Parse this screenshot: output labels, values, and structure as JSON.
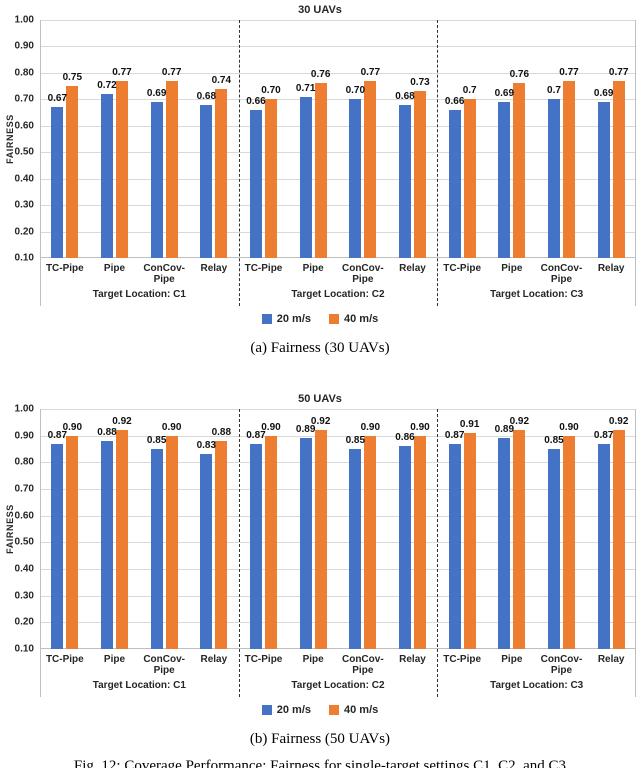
{
  "figure": {
    "caption_a": "(a) Fairness (30 UAVs)",
    "caption_b": "(b) Fairness (50 UAVs)",
    "fig_caption": "Fig. 12: Coverage Performance: Fairness for single-target settings C1, C2, and C3"
  },
  "colors": {
    "series_20ms": "#4472C4",
    "series_40ms": "#ED7D31",
    "gridline": "#D9D9D9",
    "axis_border": "#BFBFBF",
    "group_separator": "#333333"
  },
  "chart_data": [
    {
      "type": "bar",
      "title": "30 UAVs",
      "ylabel": "FAIRNESS",
      "ylim": [
        0.1,
        1.0
      ],
      "ytick_step": 0.1,
      "yticks": [
        "1.00",
        "0.90",
        "0.80",
        "0.70",
        "0.60",
        "0.50",
        "0.40",
        "0.30",
        "0.20",
        "0.10"
      ],
      "grid": true,
      "legend_position": "bottom",
      "legend": [
        {
          "label": "20 m/s",
          "color": "#4472C4"
        },
        {
          "label": "40 m/s",
          "color": "#ED7D31"
        }
      ],
      "groups": [
        {
          "label": "Target Location: C1",
          "categories": [
            "TC-Pipe",
            "Pipe",
            "ConCov-Pipe",
            "Relay"
          ],
          "series": [
            {
              "name": "20 m/s",
              "color": "#4472C4",
              "values": [
                0.67,
                0.72,
                0.69,
                0.68
              ],
              "labels": [
                "0.67",
                "0.72",
                "0.69",
                "0.68"
              ]
            },
            {
              "name": "40 m/s",
              "color": "#ED7D31",
              "values": [
                0.75,
                0.77,
                0.77,
                0.74
              ],
              "labels": [
                "0.75",
                "0.77",
                "0.77",
                "0.74"
              ]
            }
          ]
        },
        {
          "label": "Target Location: C2",
          "categories": [
            "TC-Pipe",
            "Pipe",
            "ConCov-Pipe",
            "Relay"
          ],
          "series": [
            {
              "name": "20 m/s",
              "color": "#4472C4",
              "values": [
                0.66,
                0.71,
                0.7,
                0.68
              ],
              "labels": [
                "0.66",
                "0.71",
                "0.70",
                "0.68"
              ]
            },
            {
              "name": "40 m/s",
              "color": "#ED7D31",
              "values": [
                0.7,
                0.76,
                0.77,
                0.73
              ],
              "labels": [
                "0.70",
                "0.76",
                "0.77",
                "0.73"
              ]
            }
          ]
        },
        {
          "label": "Target Location: C3",
          "categories": [
            "TC-Pipe",
            "Pipe",
            "ConCov-Pipe",
            "Relay"
          ],
          "series": [
            {
              "name": "20 m/s",
              "color": "#4472C4",
              "values": [
                0.66,
                0.69,
                0.7,
                0.69
              ],
              "labels": [
                "0.66",
                "0.69",
                "0.7",
                "0.69"
              ]
            },
            {
              "name": "40 m/s",
              "color": "#ED7D31",
              "values": [
                0.7,
                0.76,
                0.77,
                0.77
              ],
              "labels": [
                "0.7",
                "0.76",
                "0.77",
                "0.77"
              ]
            }
          ]
        }
      ]
    },
    {
      "type": "bar",
      "title": "50 UAVs",
      "ylabel": "FAIRNESS",
      "ylim": [
        0.1,
        1.0
      ],
      "ytick_step": 0.1,
      "yticks": [
        "1.00",
        "0.90",
        "0.80",
        "0.70",
        "0.60",
        "0.50",
        "0.40",
        "0.30",
        "0.20",
        "0.10"
      ],
      "grid": true,
      "legend_position": "bottom",
      "legend": [
        {
          "label": "20 m/s",
          "color": "#4472C4"
        },
        {
          "label": "40 m/s",
          "color": "#ED7D31"
        }
      ],
      "groups": [
        {
          "label": "Target Location: C1",
          "categories": [
            "TC-Pipe",
            "Pipe",
            "ConCov-Pipe",
            "Relay"
          ],
          "series": [
            {
              "name": "20 m/s",
              "color": "#4472C4",
              "values": [
                0.87,
                0.88,
                0.85,
                0.83
              ],
              "labels": [
                "0.87",
                "0.88",
                "0.85",
                "0.83"
              ]
            },
            {
              "name": "40 m/s",
              "color": "#ED7D31",
              "values": [
                0.9,
                0.92,
                0.9,
                0.88
              ],
              "labels": [
                "0.90",
                "0.92",
                "0.90",
                "0.88"
              ]
            }
          ]
        },
        {
          "label": "Target Location: C2",
          "categories": [
            "TC-Pipe",
            "Pipe",
            "ConCov-Pipe",
            "Relay"
          ],
          "series": [
            {
              "name": "20 m/s",
              "color": "#4472C4",
              "values": [
                0.87,
                0.89,
                0.85,
                0.86
              ],
              "labels": [
                "0.87",
                "0.89",
                "0.85",
                "0.86"
              ]
            },
            {
              "name": "40 m/s",
              "color": "#ED7D31",
              "values": [
                0.9,
                0.92,
                0.9,
                0.9
              ],
              "labels": [
                "0.90",
                "0.92",
                "0.90",
                "0.90"
              ]
            }
          ]
        },
        {
          "label": "Target Location: C3",
          "categories": [
            "TC-Pipe",
            "Pipe",
            "ConCov-Pipe",
            "Relay"
          ],
          "series": [
            {
              "name": "20 m/s",
              "color": "#4472C4",
              "values": [
                0.87,
                0.89,
                0.85,
                0.87
              ],
              "labels": [
                "0.87",
                "0.89",
                "0.85",
                "0.87"
              ]
            },
            {
              "name": "40 m/s",
              "color": "#ED7D31",
              "values": [
                0.91,
                0.92,
                0.9,
                0.92
              ],
              "labels": [
                "0.91",
                "0.92",
                "0.90",
                "0.92"
              ]
            }
          ]
        }
      ]
    }
  ]
}
